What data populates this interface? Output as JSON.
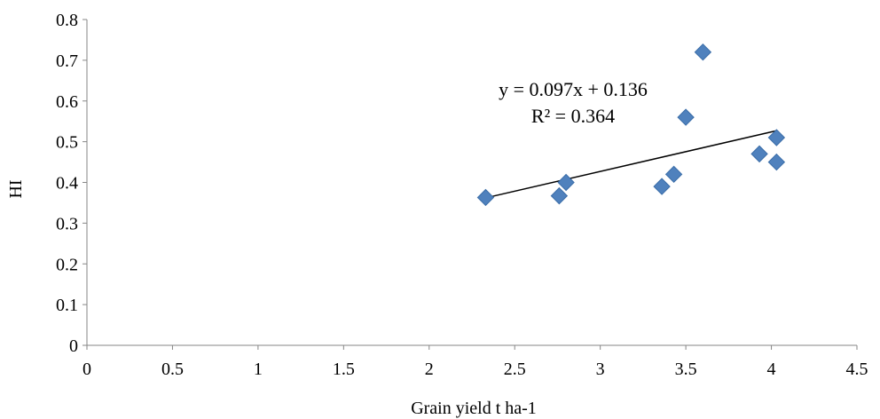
{
  "chart_data": {
    "type": "scatter",
    "title": "",
    "xlabel": "Grain yield t ha-1",
    "ylabel": "HI",
    "xlim": [
      0,
      4.5
    ],
    "ylim": [
      0,
      0.8
    ],
    "x_ticks": [
      "0",
      "0.5",
      "1",
      "1.5",
      "2",
      "2.5",
      "3",
      "3.5",
      "4",
      "4.5"
    ],
    "y_ticks": [
      "0",
      "0.1",
      "0.2",
      "0.3",
      "0.4",
      "0.5",
      "0.6",
      "0.7",
      "0.8"
    ],
    "grid": false,
    "legend": "none",
    "series": [
      {
        "marker": "diamond",
        "color": "#4F81BD",
        "points": [
          {
            "x": 2.33,
            "y": 0.363
          },
          {
            "x": 2.76,
            "y": 0.367
          },
          {
            "x": 2.8,
            "y": 0.4
          },
          {
            "x": 3.36,
            "y": 0.39
          },
          {
            "x": 3.43,
            "y": 0.42
          },
          {
            "x": 3.5,
            "y": 0.56
          },
          {
            "x": 3.6,
            "y": 0.72
          },
          {
            "x": 3.93,
            "y": 0.47
          },
          {
            "x": 4.03,
            "y": 0.51
          },
          {
            "x": 4.03,
            "y": 0.45
          }
        ]
      }
    ],
    "trendline": {
      "type": "linear",
      "slope": 0.097,
      "intercept": 0.136,
      "x_range": [
        2.33,
        4.03
      ],
      "color": "#000000",
      "equation": "y = 0.097x + 0.136",
      "r_squared": "R² = 0.364"
    }
  }
}
